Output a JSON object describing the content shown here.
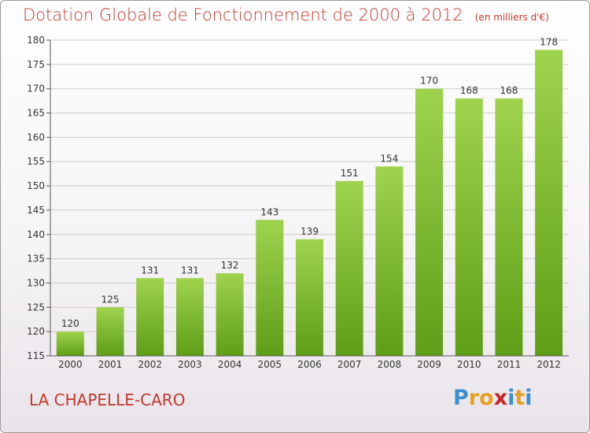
{
  "header": {
    "title": "Dotation Globale de Fonctionnement de 2000 à 2012",
    "unit": "(en milliers d'€)"
  },
  "footer": {
    "commune": "LA CHAPELLE-CARO",
    "logo_letters": [
      "P",
      "r",
      "o",
      "x",
      "i",
      "t",
      "i"
    ],
    "logo_colors": [
      "#3a8fd0",
      "#e6a020",
      "#e6a020",
      "#cc2222",
      "#3a8fd0",
      "#e6a020",
      "#3a8fd0"
    ]
  },
  "colors": {
    "bar_top": "#9fd34e",
    "bar_bottom": "#5e9e16",
    "title": "#c0392b",
    "grid": "#cccccc"
  },
  "chart_data": {
    "type": "bar",
    "title": "Dotation Globale de Fonctionnement de 2000 à 2012",
    "subtitle": "(en milliers d'€)",
    "categories": [
      "2000",
      "2001",
      "2002",
      "2003",
      "2004",
      "2005",
      "2006",
      "2007",
      "2008",
      "2009",
      "2010",
      "2011",
      "2012"
    ],
    "values": [
      120,
      125,
      131,
      131,
      132,
      143,
      139,
      151,
      154,
      170,
      168,
      168,
      178
    ],
    "ylim": [
      115,
      180
    ],
    "yticks": [
      115,
      120,
      125,
      130,
      135,
      140,
      145,
      150,
      155,
      160,
      165,
      170,
      175,
      180
    ],
    "grid": true,
    "xlabel": "",
    "ylabel": ""
  }
}
